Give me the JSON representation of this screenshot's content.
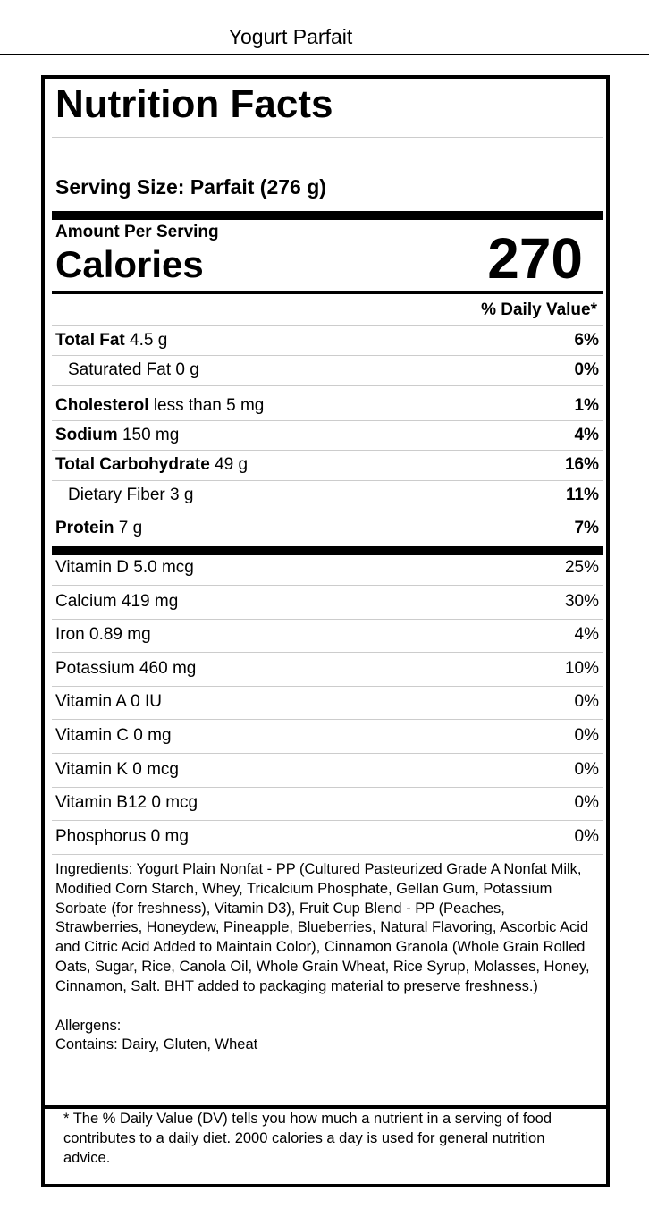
{
  "header": {
    "title": "Yogurt Parfait"
  },
  "label": {
    "heading": "Nutrition Facts",
    "serving_size": "Serving Size: Parfait (276 g)",
    "amount_per_serving": "Amount Per Serving",
    "calories_label": "Calories",
    "calories": 270,
    "daily_value_heading": "% Daily Value*",
    "nutrients": [
      {
        "name": "Total Fat",
        "amount": "4.5 g",
        "dv": "6%"
      },
      {
        "name": "Saturated Fat",
        "amount": "0 g",
        "dv": "0%"
      },
      {
        "name": "Cholesterol",
        "amount": "less than 5 mg",
        "dv": "1%"
      },
      {
        "name": "Sodium",
        "amount": "150 mg",
        "dv": "4%"
      },
      {
        "name": "Total Carbohydrate",
        "amount": "49 g",
        "dv": "16%"
      },
      {
        "name": "Dietary Fiber",
        "amount": "3 g",
        "dv": "11%"
      },
      {
        "name": "Protein",
        "amount": "7 g",
        "dv": "7%"
      }
    ],
    "vitamins": [
      {
        "name": "Vitamin D 5.0 mcg",
        "dv": "25%"
      },
      {
        "name": "Calcium 419 mg",
        "dv": "30%"
      },
      {
        "name": "Iron 0.89 mg",
        "dv": "4%"
      },
      {
        "name": "Potassium 460 mg",
        "dv": "10%"
      },
      {
        "name": "Vitamin A 0 IU",
        "dv": "0%"
      },
      {
        "name": "Vitamin C 0 mg",
        "dv": "0%"
      },
      {
        "name": "Vitamin K 0 mcg",
        "dv": "0%"
      },
      {
        "name": "Vitamin B12 0 mcg",
        "dv": "0%"
      },
      {
        "name": "Phosphorus 0 mg",
        "dv": "0%"
      }
    ],
    "ingredients": "Ingredients: Yogurt Plain Nonfat - PP (Cultured Pasteurized Grade A Nonfat Milk, Modified Corn Starch, Whey, Tricalcium Phosphate, Gellan Gum, Potassium Sorbate (for freshness), Vitamin D3), Fruit Cup Blend - PP (Peaches, Strawberries, Honeydew, Pineapple, Blueberries, Natural Flavoring, Ascorbic Acid and Citric Acid Added to Maintain Color), Cinnamon Granola (Whole Grain Rolled Oats, Sugar, Rice, Canola Oil, Whole Grain Wheat, Rice Syrup, Molasses, Honey, Cinnamon, Salt. BHT added to packaging material to preserve freshness.)",
    "allergens_heading": "Allergens:",
    "allergens": "Contains: Dairy, Gluten, Wheat",
    "footnote": "* The % Daily Value (DV) tells you how much a nutrient in a serving of food contributes to a daily diet. 2000 calories a day is used for general nutrition advice."
  }
}
